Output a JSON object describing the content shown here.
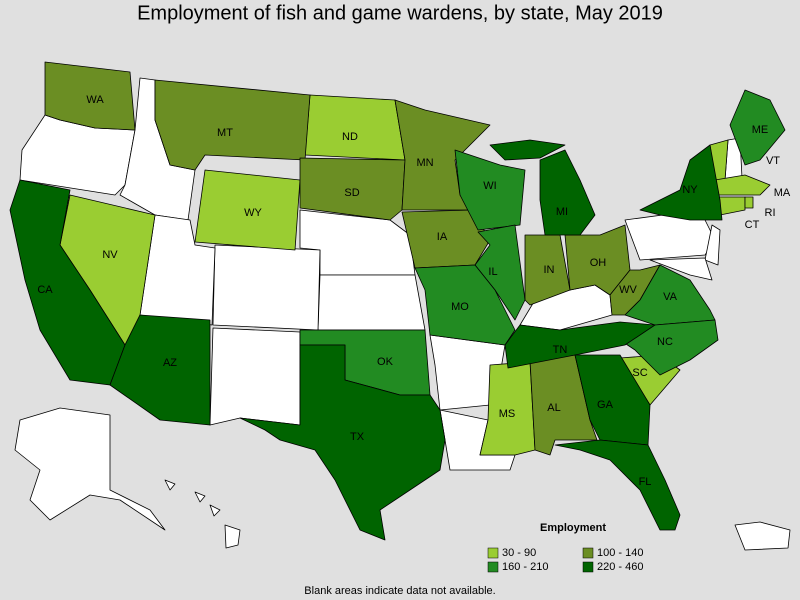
{
  "title": "Employment of fish and game wardens, by state, May 2019",
  "legend": {
    "title": "Employment",
    "items": [
      {
        "label": "30 - 90",
        "color": "#9acd32",
        "states": [
          "NV",
          "WY",
          "ND",
          "MS",
          "SC",
          "VT",
          "MA",
          "CT",
          "RI"
        ]
      },
      {
        "label": "100 - 140",
        "color": "#6b8e23",
        "states": [
          "WA",
          "MT",
          "SD",
          "MN",
          "IA",
          "IN",
          "OH",
          "WV",
          "AL"
        ]
      },
      {
        "label": "160 - 210",
        "color": "#228b22",
        "states": [
          "ME",
          "WI",
          "IL",
          "MO",
          "OK",
          "VA",
          "NC"
        ]
      },
      {
        "label": "220 - 460",
        "color": "#006400",
        "states": [
          "CA",
          "AZ",
          "TX",
          "MI",
          "NY",
          "TN",
          "GA",
          "FL"
        ]
      }
    ]
  },
  "footnote": "Blank areas indicate data not available."
}
